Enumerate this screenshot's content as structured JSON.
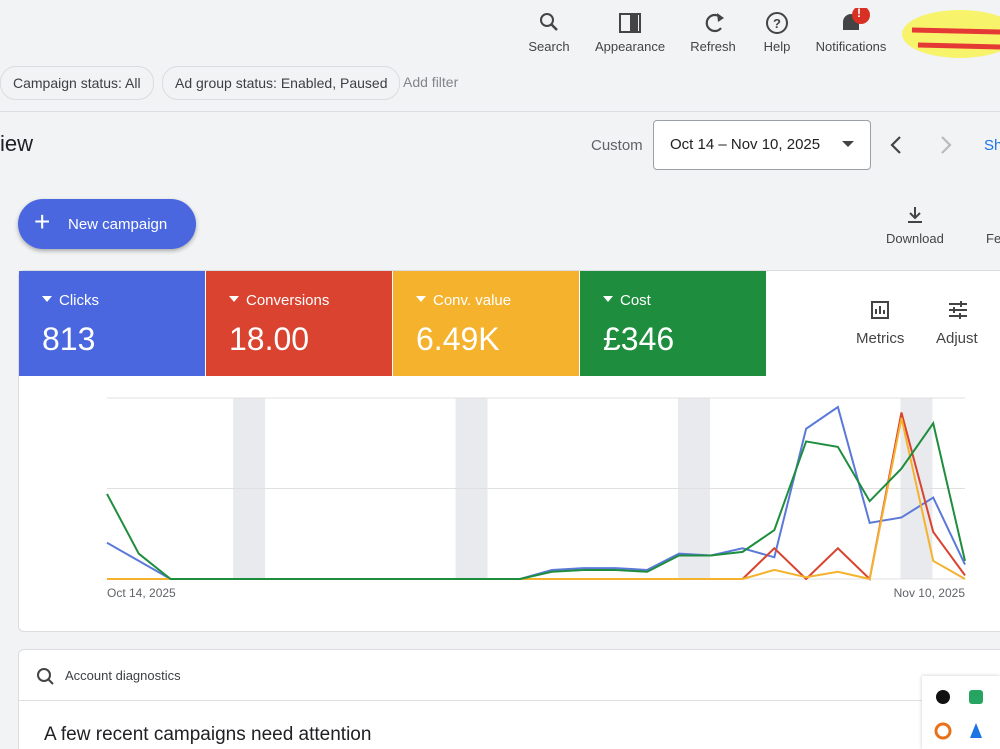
{
  "toolbar": {
    "items": [
      "Search",
      "Appearance",
      "Refresh",
      "Help",
      "Notifications"
    ],
    "notification_badge": "!"
  },
  "filters": {
    "chips": [
      "Campaign status: All",
      "Ad group status: Enabled, Paused"
    ],
    "add_filter": "Add filter"
  },
  "page_title": "iew",
  "date_range": {
    "label": "Custom",
    "value": "Oct 14 – Nov 10, 2025",
    "share": "Sh"
  },
  "actions": {
    "new_campaign": "New campaign",
    "download": "Download",
    "feedback": "Fe"
  },
  "metrics": [
    {
      "name": "Clicks",
      "value": "813",
      "color": "#4a67e0"
    },
    {
      "name": "Conversions",
      "value": "18.00",
      "color": "#d9432f"
    },
    {
      "name": "Conv. value",
      "value": "6.49K",
      "color": "#f4b22d"
    },
    {
      "name": "Cost",
      "value": "£346",
      "color": "#1e8e3e"
    }
  ],
  "metric_tools": [
    "Metrics",
    "Adjust"
  ],
  "chart": {
    "x_start": "Oct 14, 2025",
    "x_end": "Nov 10, 2025",
    "series": [
      {
        "color": "#5b79d9",
        "values": [
          20,
          10,
          0,
          0,
          0,
          0,
          0,
          0,
          0,
          0,
          0,
          0,
          0,
          0,
          5,
          6,
          6,
          5,
          14,
          13,
          17,
          12,
          83,
          95,
          31,
          34,
          45,
          8
        ]
      },
      {
        "color": "#d9432f",
        "values": [
          0,
          0,
          0,
          0,
          0,
          0,
          0,
          0,
          0,
          0,
          0,
          0,
          0,
          0,
          0,
          0,
          0,
          0,
          0,
          0,
          0,
          17,
          0,
          17,
          0,
          92,
          26,
          2
        ]
      },
      {
        "color": "#f4b22d",
        "values": [
          0,
          0,
          0,
          0,
          0,
          0,
          0,
          0,
          0,
          0,
          0,
          0,
          0,
          0,
          0,
          0,
          0,
          0,
          0,
          0,
          0,
          5,
          1,
          4,
          0,
          89,
          10,
          0
        ]
      },
      {
        "color": "#1e8e3e",
        "values": [
          47,
          14,
          0,
          0,
          0,
          0,
          0,
          0,
          0,
          0,
          0,
          0,
          0,
          0,
          4,
          5,
          5,
          4,
          13,
          13,
          15,
          27,
          76,
          73,
          43,
          61,
          86,
          10
        ]
      }
    ]
  },
  "diagnostics": {
    "title": "Account diagnostics",
    "headline": "A few recent campaigns need attention"
  }
}
